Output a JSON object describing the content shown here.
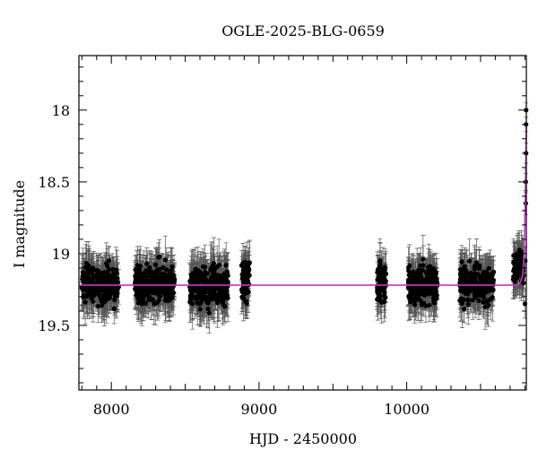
{
  "chart_data": {
    "type": "scatter",
    "title": "OGLE-2025-BLG-0659",
    "xlabel": "HJD - 2450000",
    "ylabel": "I magnitude",
    "xlim": [
      7780,
      10810
    ],
    "ylim": [
      19.95,
      17.62
    ],
    "y_inverted": true,
    "xticks": [
      8000,
      9000,
      10000
    ],
    "yticks": [
      18,
      18.5,
      19,
      19.5
    ],
    "x_minor_step": 100,
    "y_minor_step": 0.1,
    "grid": false,
    "legend": "none",
    "colors": {
      "points": "#000000",
      "model": "#cc33cc"
    },
    "baseline_magnitude": 19.22,
    "seasons": [
      {
        "x_start": 7800,
        "x_end": 8050,
        "mag_center": 19.22,
        "scatter": 0.16,
        "err_typ": 0.13
      },
      {
        "x_start": 8160,
        "x_end": 8430,
        "mag_center": 19.22,
        "scatter": 0.16,
        "err_typ": 0.13
      },
      {
        "x_start": 8530,
        "x_end": 8790,
        "mag_center": 19.23,
        "scatter": 0.17,
        "err_typ": 0.14
      },
      {
        "x_start": 8880,
        "x_end": 8940,
        "mag_center": 19.2,
        "scatter": 0.17,
        "err_typ": 0.13
      },
      {
        "x_start": 9800,
        "x_end": 9860,
        "mag_center": 19.2,
        "scatter": 0.17,
        "err_typ": 0.13
      },
      {
        "x_start": 10010,
        "x_end": 10210,
        "mag_center": 19.22,
        "scatter": 0.16,
        "err_typ": 0.13
      },
      {
        "x_start": 10360,
        "x_end": 10590,
        "mag_center": 19.21,
        "scatter": 0.16,
        "err_typ": 0.13
      },
      {
        "x_start": 10720,
        "x_end": 10790,
        "mag_center": 19.1,
        "scatter": 0.16,
        "err_typ": 0.13
      }
    ],
    "event_points": [
      {
        "x": 10800,
        "y": 19.35,
        "err": 0.1
      },
      {
        "x": 10803,
        "y": 19.05,
        "err": 0.1
      },
      {
        "x": 10806,
        "y": 18.65,
        "err": 0.08
      },
      {
        "x": 10808,
        "y": 18.3,
        "err": 0.07
      },
      {
        "x": 10809,
        "y": 18.0,
        "err": 0.05
      },
      {
        "x": 10808,
        "y": 18.1,
        "err": 0.05
      },
      {
        "x": 10806,
        "y": 18.5,
        "err": 0.06
      }
    ],
    "model_curve": {
      "x": [
        7780,
        10740,
        10770,
        10785,
        10792,
        10797,
        10801,
        10804,
        10806,
        10808,
        10810
      ],
      "y": [
        19.22,
        19.22,
        19.2,
        19.15,
        19.05,
        18.9,
        18.7,
        18.55,
        18.4,
        18.25,
        18.1
      ]
    }
  }
}
